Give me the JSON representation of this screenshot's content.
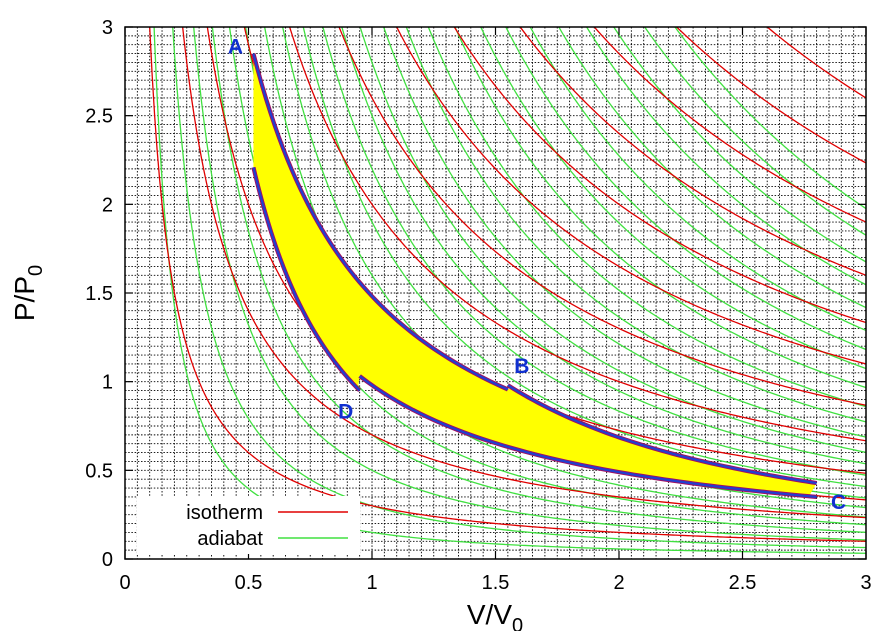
{
  "chart_data": {
    "type": "line",
    "xlabel": {
      "main": "V/V",
      "sub": "0"
    },
    "ylabel": {
      "main": "P/P",
      "sub": "0"
    },
    "xlim": [
      0,
      3
    ],
    "ylim": [
      0,
      3
    ],
    "xticks": [
      0,
      0.5,
      1,
      1.5,
      2,
      2.5,
      3
    ],
    "yticks": [
      0,
      0.5,
      1,
      1.5,
      2,
      2.5,
      3
    ],
    "xtick_labels": [
      "0",
      "0.5",
      "1",
      "1.5",
      "2",
      "2.5",
      "3"
    ],
    "ytick_labels": [
      "0",
      "0.5",
      "1",
      "1.5",
      "2",
      "2.5",
      "3"
    ],
    "grid": "dense dotted",
    "gamma": 1.4,
    "series": [
      {
        "name": "isotherm",
        "color": "#e00000",
        "formula": "P*V = k",
        "k": [
          0.3,
          0.7,
          1.0,
          1.45,
          2.0,
          2.6,
          3.3,
          4.0,
          4.8,
          5.7,
          6.7,
          7.8
        ]
      },
      {
        "name": "adiabat",
        "color": "#40e040",
        "formula": "P*V^1.4 = k",
        "k": [
          0.15,
          0.3,
          0.5,
          0.7,
          0.9,
          1.1,
          1.35,
          1.6,
          1.9,
          2.2,
          2.5,
          2.8,
          3.2,
          3.6,
          4.0,
          4.5,
          5.0,
          5.5,
          6.0,
          6.6,
          7.2,
          7.8,
          8.5,
          9.2
        ]
      }
    ],
    "cycle": {
      "fill": "#ffff00",
      "stroke": "#2040d0",
      "stroke_alt": "#a01060",
      "points": [
        {
          "label": "A",
          "V": 0.52,
          "P": 2.85
        },
        {
          "label": "B",
          "V": 1.55,
          "P": 0.98
        },
        {
          "label": "C",
          "V": 2.8,
          "P": 0.35
        },
        {
          "label": "D",
          "V": 0.95,
          "P": 0.95
        }
      ]
    },
    "point_label_color": "#1030d0",
    "legend": {
      "placement": "bottom-left",
      "entries": [
        "isotherm",
        "adiabat"
      ]
    }
  }
}
